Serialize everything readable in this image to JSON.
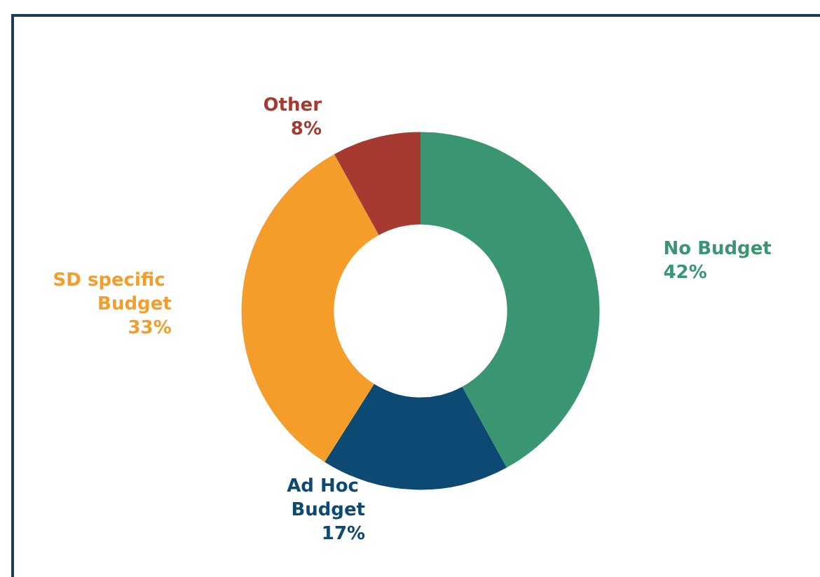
{
  "chart_data": {
    "type": "donut",
    "categories": [
      "No Budget",
      "Ad Hoc Budget",
      "SD specific Budget",
      "Other"
    ],
    "values": [
      42,
      17,
      33,
      8
    ],
    "value_labels": [
      "42%",
      "17%",
      "33%",
      "8%"
    ],
    "colors": [
      "#3a9670",
      "#0d4a73",
      "#f59d2a",
      "#a63a30"
    ],
    "legend": false
  }
}
